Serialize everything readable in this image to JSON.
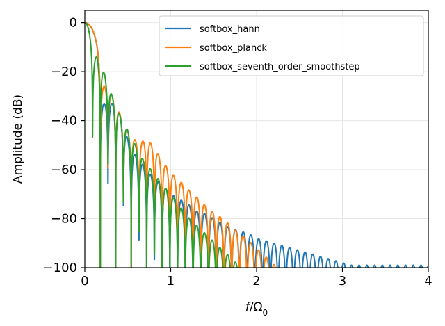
{
  "chart_data": {
    "type": "line",
    "xlabel": "f/Ω0",
    "xlabel_parts": {
      "var": "f",
      "slash": "/Ω",
      "sub": "0"
    },
    "ylabel": "Amplitude (dB)",
    "xlim": [
      0,
      4
    ],
    "ylim": [
      -100,
      5
    ],
    "xticks": [
      0,
      1,
      2,
      3,
      4
    ],
    "yticks": [
      0,
      -20,
      -40,
      -60,
      -80,
      -100
    ],
    "xtick_labels": [
      "0",
      "1",
      "2",
      "3",
      "4"
    ],
    "ytick_labels": [
      "0",
      "−20",
      "−40",
      "−60",
      "−80",
      "−100"
    ],
    "grid": true,
    "legend_position": "top-right",
    "series": [
      {
        "name": "softbox_hann",
        "color": "#1f77b4",
        "first_zero": 0.18,
        "zero_spacing": 0.09,
        "peaks": [
          [
            0.36,
            -33
          ],
          [
            0.45,
            -42
          ],
          [
            0.54,
            -52
          ],
          [
            0.63,
            -56
          ],
          [
            0.72,
            -60
          ],
          [
            0.81,
            -64
          ],
          [
            0.9,
            -66
          ],
          [
            1.0,
            -70
          ],
          [
            1.1,
            -72
          ],
          [
            1.2,
            -74
          ],
          [
            1.3,
            -77
          ],
          [
            1.4,
            -78
          ],
          [
            1.5,
            -80
          ],
          [
            1.6,
            -82
          ],
          [
            1.7,
            -84
          ],
          [
            1.8,
            -85
          ],
          [
            1.9,
            -86
          ],
          [
            2.0,
            -88
          ],
          [
            2.1,
            -89
          ],
          [
            2.2,
            -90
          ],
          [
            2.3,
            -91
          ],
          [
            2.4,
            -92
          ],
          [
            2.5,
            -93
          ],
          [
            2.6,
            -94
          ],
          [
            2.7,
            -95
          ],
          [
            2.8,
            -96
          ],
          [
            2.9,
            -97
          ],
          [
            3.0,
            -98
          ],
          [
            3.1,
            -99
          ],
          [
            3.2,
            -99
          ]
        ]
      },
      {
        "name": "softbox_planck",
        "color": "#ff7f0e",
        "first_zero": 0.18,
        "zero_spacing": 0.09,
        "peaks": [
          [
            0.26,
            -26
          ],
          [
            0.35,
            -32
          ],
          [
            0.44,
            -40
          ],
          [
            0.53,
            -46
          ],
          [
            0.62,
            -49
          ],
          [
            0.71,
            -48
          ],
          [
            0.8,
            -50
          ],
          [
            0.89,
            -56
          ],
          [
            0.98,
            -60
          ],
          [
            1.07,
            -64
          ],
          [
            1.16,
            -66
          ],
          [
            1.25,
            -70
          ],
          [
            1.34,
            -72
          ],
          [
            1.43,
            -76
          ],
          [
            1.52,
            -78
          ],
          [
            1.61,
            -80
          ],
          [
            1.7,
            -83
          ],
          [
            1.79,
            -86
          ],
          [
            1.88,
            -88
          ],
          [
            1.97,
            -91
          ],
          [
            2.06,
            -94
          ],
          [
            2.15,
            -97
          ]
        ]
      },
      {
        "name": "softbox_seventh_order_smoothstep",
        "color": "#2ca02c",
        "first_zero": 0.09,
        "zero_spacing": 0.09,
        "peaks": [
          [
            0.14,
            -14
          ],
          [
            0.23,
            -21
          ],
          [
            0.32,
            -30
          ],
          [
            0.41,
            -38
          ],
          [
            0.5,
            -44
          ],
          [
            0.59,
            -50
          ],
          [
            0.68,
            -56
          ],
          [
            0.77,
            -60
          ],
          [
            0.86,
            -64
          ],
          [
            0.95,
            -68
          ],
          [
            1.04,
            -72
          ],
          [
            1.13,
            -76
          ],
          [
            1.22,
            -80
          ],
          [
            1.31,
            -83
          ],
          [
            1.4,
            -86
          ],
          [
            1.49,
            -89
          ],
          [
            1.58,
            -92
          ],
          [
            1.67,
            -95
          ],
          [
            1.76,
            -98
          ]
        ]
      }
    ]
  }
}
